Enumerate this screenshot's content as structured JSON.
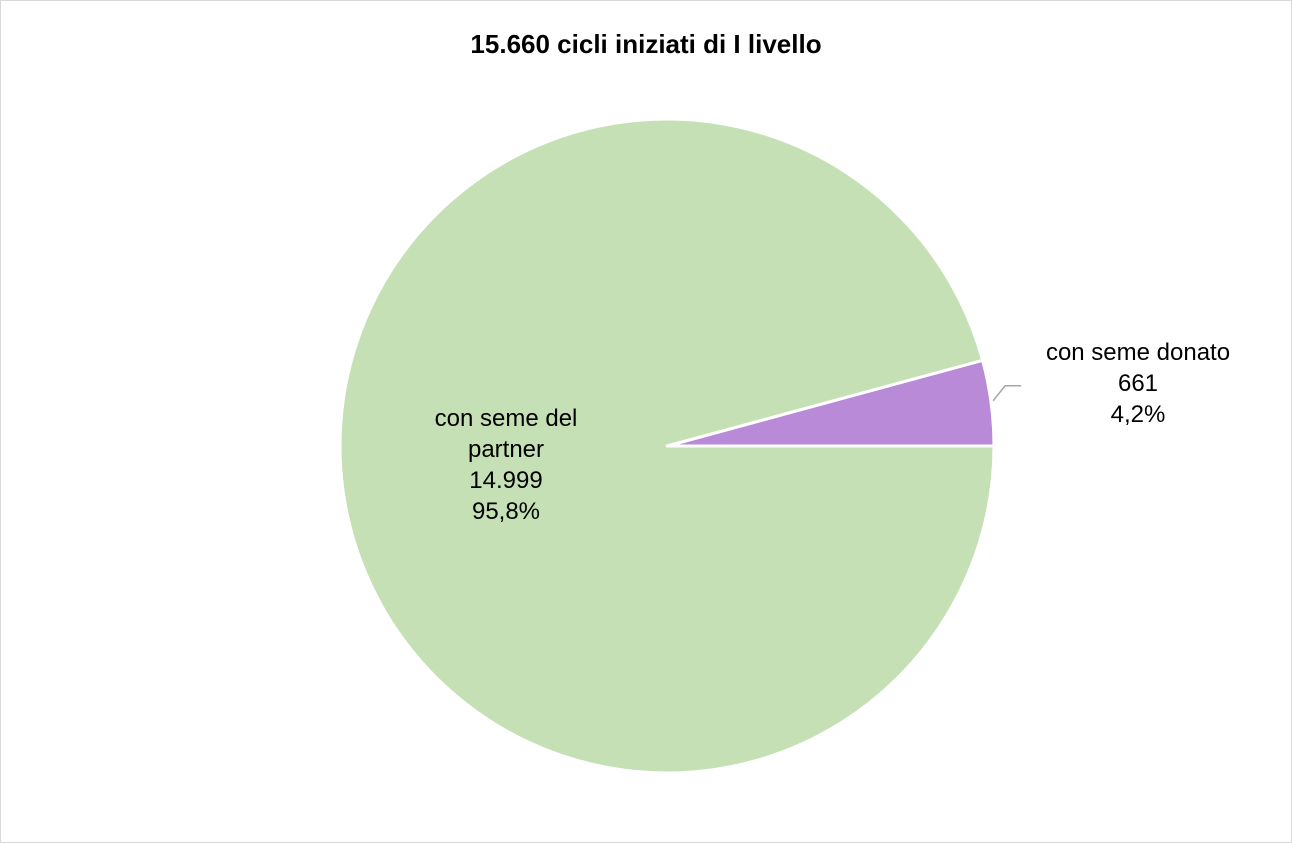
{
  "chart_data": {
    "type": "pie",
    "title": "15.660 cicli iniziati di I livello",
    "slices": [
      {
        "name": "con seme donato",
        "value": 661,
        "value_label": "661",
        "percent_label": "4,2%",
        "color": "#b88ad8",
        "name_lines": [
          "con seme donato"
        ]
      },
      {
        "name": "con seme del partner",
        "value": 14999,
        "value_label": "14.999",
        "percent_label": "95,8%",
        "color": "#c5e0b4",
        "name_lines": [
          "con seme del",
          "partner"
        ]
      }
    ],
    "legend": "none"
  }
}
